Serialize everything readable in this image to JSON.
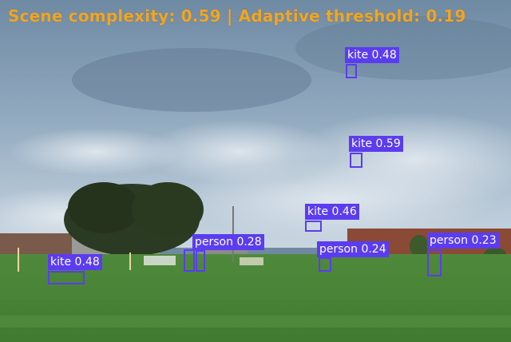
{
  "header": {
    "text": "Scene complexity: 0.59 | Adaptive threshold: 0.19",
    "color": "#f2a521"
  },
  "box_color": "#5b3cf0",
  "detections": [
    {
      "label": "kite 0.48"
    },
    {
      "label": "kite 0.59"
    },
    {
      "label": "kite 0.46"
    },
    {
      "label": "kite 0.48"
    },
    {
      "label": "person 0.28"
    },
    {
      "label": "person 0.24"
    },
    {
      "label": "person 0.23"
    }
  ]
}
